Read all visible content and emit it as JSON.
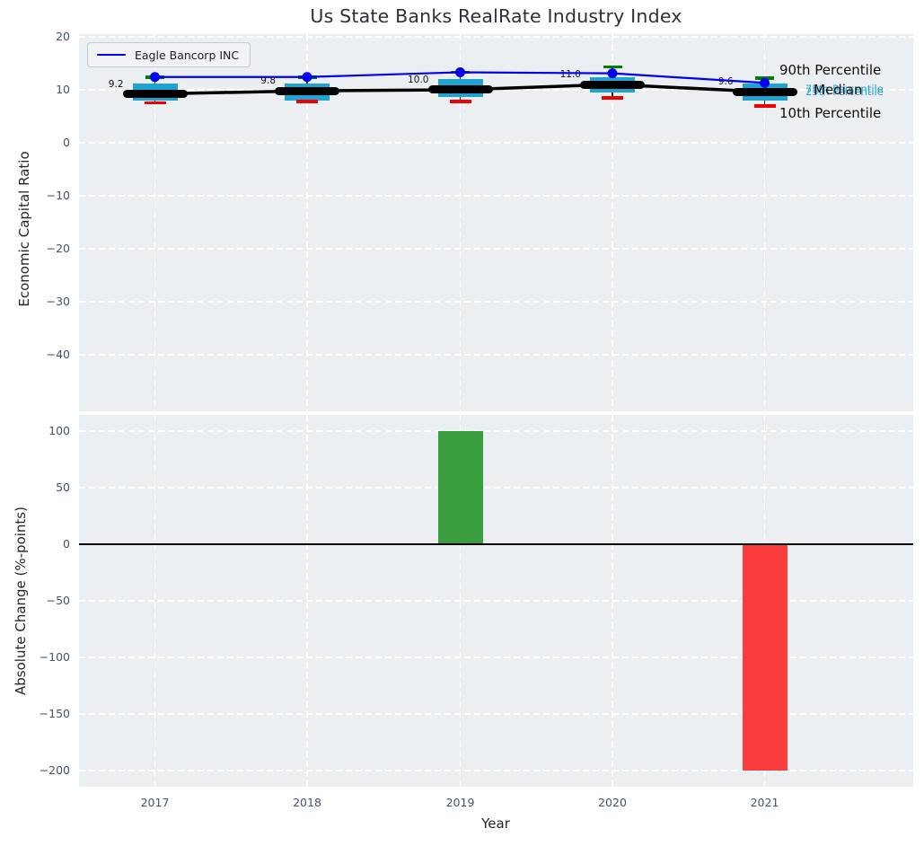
{
  "chart_data": [
    {
      "type": "line",
      "title": "Us State Banks RealRate Industry Index",
      "ylabel": "Economic Capital Ratio",
      "ylim": [
        -50.7,
        20.5
      ],
      "yticks": [
        20,
        10,
        0,
        -10,
        -20,
        -30,
        -40
      ],
      "grid": true,
      "legend_position": "upper left",
      "categories": [
        "2017",
        "2018",
        "2019",
        "2020",
        "2021"
      ],
      "series": [
        {
          "name": "Eagle Bancorp INC",
          "color": "#0000ee",
          "values": [
            12.4,
            12.4,
            13.3,
            13.1,
            11.3
          ]
        },
        {
          "name": "Median",
          "color": "#000000",
          "values": [
            9.2,
            9.8,
            10.0,
            11.0,
            9.6
          ],
          "labels": [
            "9.2",
            "9.8",
            "10.0",
            "11.0",
            "9.6"
          ]
        }
      ],
      "percentiles": {
        "p90": [
          12.4,
          12.4,
          13.3,
          14.3,
          12.2
        ],
        "p75": [
          11.2,
          11.1,
          12.1,
          12.4,
          11.1
        ],
        "p25": [
          8.0,
          8.0,
          8.7,
          9.45,
          7.9
        ],
        "p10": [
          7.5,
          7.75,
          7.8,
          8.5,
          6.9
        ]
      },
      "annotations": {
        "p90": "90th Percentile",
        "p75": "75th Percentile",
        "median": "Median",
        "p25": "25th Percentile",
        "p10": "10th Percentile"
      },
      "colors": {
        "box": "#1fa3d1",
        "median_line": "#000000",
        "company_line": "#0000ee",
        "p90_cap": "#008000",
        "p10_cap": "#f00000",
        "panel_bg": "#eceff1"
      }
    },
    {
      "type": "bar",
      "ylabel": "Absolute Change (%-points)",
      "xlabel": "Year",
      "ylim": [
        -214.3,
        114.3
      ],
      "yticks": [
        100,
        50,
        0,
        -50,
        -100,
        -150,
        -200
      ],
      "grid": true,
      "categories": [
        "2017",
        "2018",
        "2019",
        "2020",
        "2021"
      ],
      "values": [
        null,
        0,
        100,
        0,
        -200
      ],
      "bar_colors": {
        "positive": "#3a9d3e",
        "negative": "#fa3c3c"
      }
    }
  ]
}
